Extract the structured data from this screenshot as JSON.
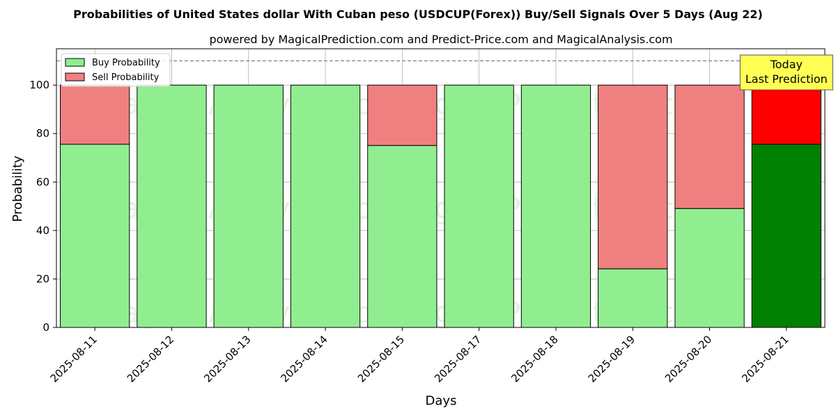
{
  "chart_data": {
    "type": "bar",
    "stacked": true,
    "title": "Probabilities of United States dollar With Cuban peso (USDCUP(Forex)) Buy/Sell Signals Over 5 Days (Aug 22)",
    "subtitle": "powered by MagicalPrediction.com and Predict-Price.com and MagicalAnalysis.com",
    "xlabel": "Days",
    "ylabel": "Probability",
    "ylim": [
      0,
      115
    ],
    "yticks": [
      0,
      20,
      40,
      60,
      80,
      100
    ],
    "grid": true,
    "reference_line": 110,
    "legend_placement": "top-left",
    "categories": [
      "2025-08-11",
      "2025-08-12",
      "2025-08-13",
      "2025-08-14",
      "2025-08-15",
      "2025-08-17",
      "2025-08-18",
      "2025-08-19",
      "2025-08-20",
      "2025-08-21"
    ],
    "series": [
      {
        "name": "Buy Probability",
        "values": [
          75.6,
          100,
          100,
          100,
          75.1,
          100,
          100,
          24.2,
          49.1,
          75.6
        ],
        "color": "#90ee90",
        "highlight_color": "#008000"
      },
      {
        "name": "Sell Probability",
        "values": [
          24.4,
          0,
          0,
          0,
          24.9,
          0,
          0,
          75.8,
          50.9,
          24.4
        ],
        "color": "#f08080",
        "highlight_color": "#ff0000"
      }
    ],
    "highlight_index": 9,
    "annotation": {
      "lines": [
        "Today",
        "Last Prediction"
      ],
      "bg_color": "#ffff54"
    },
    "watermarks": [
      "MagicalAnalysis.com",
      "MagicalPrediction.com"
    ]
  }
}
